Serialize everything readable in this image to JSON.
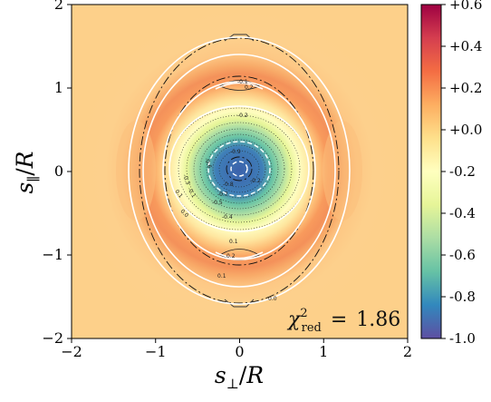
{
  "chart_data": {
    "type": "heatmap",
    "title": "",
    "xlabel": "s_⊥/R",
    "ylabel": "s_∥/R",
    "xlim": [
      -2,
      2
    ],
    "ylim": [
      -2,
      2
    ],
    "xticks": [
      "−2",
      "−1",
      "0",
      "1",
      "2"
    ],
    "yticks": [
      "−2",
      "−1",
      "0",
      "1",
      "2"
    ],
    "colorbar": {
      "range": [
        -1.0,
        0.6
      ],
      "colormap": "Spectral_r",
      "ticks": [
        "+0.6",
        "+0.4",
        "+0.2",
        "+0.0",
        "-0.2",
        "-0.4",
        "-0.6",
        "-0.8",
        "-1.0"
      ],
      "tick_values": [
        0.6,
        0.4,
        0.2,
        0.0,
        -0.2,
        -0.4,
        -0.6,
        -0.8,
        -1.0
      ]
    },
    "field": {
      "description_values": {
        "center_value": -1.0,
        "background_value": 0.08,
        "ring_peak_value": 0.2,
        "ring_radius": 1.05
      }
    },
    "contour_labels": [
      "0.0",
      "0.1",
      "0.1",
      "-0.1",
      "-0.2",
      "-0.3",
      "-0.4",
      "-0.5",
      "-0.6",
      "-0.7",
      "-0.8",
      "-0.9",
      "-0.2",
      "-0.1",
      "0.1",
      "0.0",
      "0.2",
      "0.2"
    ],
    "annotation": {
      "prefix": "χ",
      "sup": "2",
      "sub": "red",
      "equals": "=",
      "value": "1.86"
    },
    "colors": {
      "background_field": "#fdd08a",
      "ring": "#f08a4e",
      "center": "#3f63ad",
      "contours_model": "#ffffff",
      "contours_data": "#000000"
    }
  }
}
